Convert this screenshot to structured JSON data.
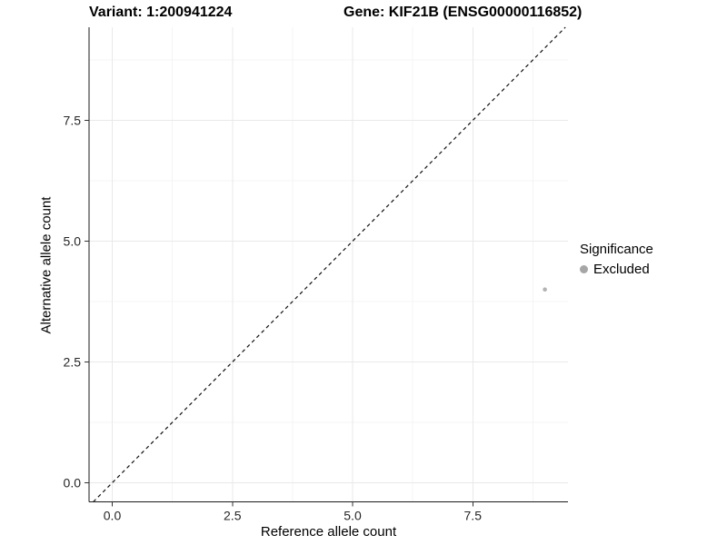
{
  "chart_data": {
    "type": "scatter",
    "title_left": "Variant: 1:200941224",
    "title_right": "Gene: KIF21B (ENSG00000116852)",
    "xlabel": "Reference allele count",
    "ylabel": "Alternative allele count",
    "xlim": [
      -0.45,
      9.45
    ],
    "ylim": [
      -0.45,
      9.45
    ],
    "x_ticks": [
      0.0,
      2.5,
      5.0,
      7.5
    ],
    "y_ticks": [
      0.0,
      2.5,
      5.0,
      7.5
    ],
    "x_tick_labels": [
      "0.0",
      "2.5",
      "5.0",
      "7.5"
    ],
    "y_tick_labels": [
      "0.0",
      "2.5",
      "5.0",
      "7.5"
    ],
    "minor_ticks": [
      1.25,
      3.75,
      6.25,
      8.75
    ],
    "grid": true,
    "reference_line": {
      "type": "identity",
      "style": "dashed",
      "color": "#111111"
    },
    "series": [
      {
        "name": "Excluded",
        "color": "#b3b3b3",
        "points": [
          {
            "x": 9,
            "y": 4
          }
        ]
      }
    ],
    "legend": {
      "title": "Significance",
      "position": "right",
      "entries": [
        {
          "label": "Excluded",
          "color": "#a6a6a6"
        }
      ]
    },
    "colors": {
      "background": "#ffffff",
      "grid_major": "#e9e9e9",
      "grid_minor": "#f4f4f4",
      "axis_line": "#1a1a1a",
      "tick_text": "#262626"
    }
  }
}
